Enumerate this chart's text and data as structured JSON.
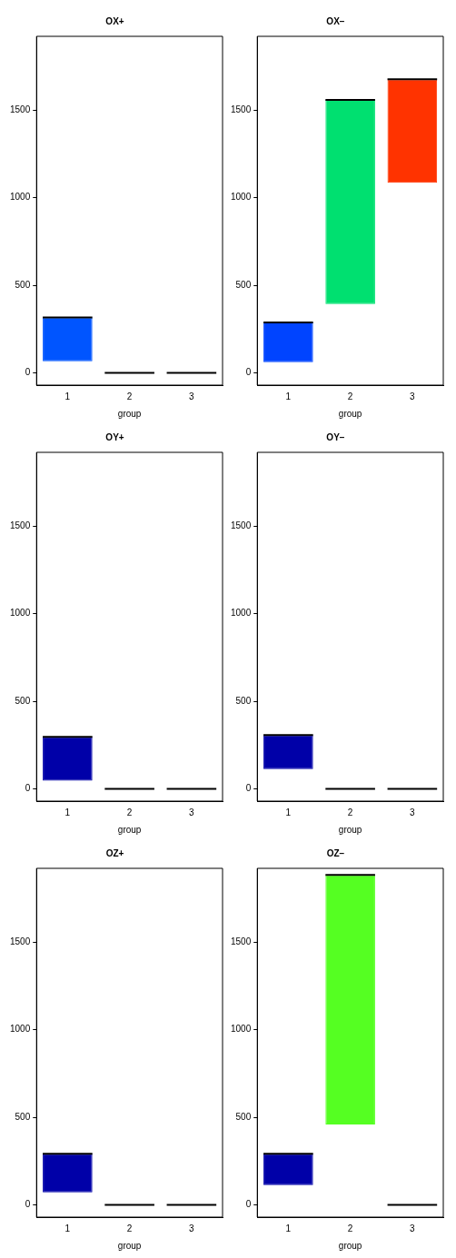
{
  "chart_data": [
    {
      "type": "box",
      "title": "OX+",
      "xlabel": "group",
      "categories": [
        "1",
        "2",
        "3"
      ],
      "ylim": [
        -70,
        1920
      ],
      "yticks": [
        0,
        500,
        1000,
        1500
      ],
      "grid": false,
      "colors": [
        "#0055ff",
        "#000000",
        "#000000"
      ],
      "boxes": [
        {
          "low": 66,
          "q1": 66,
          "median": 316,
          "q3": 316,
          "high": 316
        },
        {
          "low": 0,
          "q1": 0,
          "median": 0,
          "q3": 0,
          "high": 0
        },
        {
          "low": 0,
          "q1": 0,
          "median": 0,
          "q3": 0,
          "high": 0
        }
      ]
    },
    {
      "type": "box",
      "title": "OX−",
      "xlabel": "group",
      "categories": [
        "1",
        "2",
        "3"
      ],
      "ylim": [
        -70,
        1920
      ],
      "yticks": [
        0,
        500,
        1000,
        1500
      ],
      "grid": false,
      "colors": [
        "#0044ff",
        "#00e070",
        "#ff3300"
      ],
      "boxes": [
        {
          "low": 61,
          "q1": 61,
          "median": 288,
          "q3": 288,
          "high": 288
        },
        {
          "low": 392,
          "q1": 392,
          "median": 1557,
          "q3": 1557,
          "high": 1557
        },
        {
          "low": 1085,
          "q1": 1085,
          "median": 1675,
          "q3": 1675,
          "high": 1675
        }
      ]
    },
    {
      "type": "box",
      "title": "OY+",
      "xlabel": "group",
      "categories": [
        "1",
        "2",
        "3"
      ],
      "ylim": [
        -70,
        1920
      ],
      "yticks": [
        0,
        500,
        1000,
        1500
      ],
      "grid": false,
      "colors": [
        "#0000a8",
        "#000000",
        "#000000"
      ],
      "boxes": [
        {
          "low": 47,
          "q1": 47,
          "median": 297,
          "q3": 297,
          "high": 297
        },
        {
          "low": 0,
          "q1": 0,
          "median": 0,
          "q3": 0,
          "high": 0
        },
        {
          "low": 0,
          "q1": 0,
          "median": 0,
          "q3": 0,
          "high": 0
        }
      ]
    },
    {
      "type": "box",
      "title": "OY−",
      "xlabel": "group",
      "categories": [
        "1",
        "2",
        "3"
      ],
      "ylim": [
        -70,
        1920
      ],
      "yticks": [
        0,
        500,
        1000,
        1500
      ],
      "grid": false,
      "colors": [
        "#0000a8",
        "#000000",
        "#000000"
      ],
      "boxes": [
        {
          "low": 113,
          "q1": 113,
          "median": 307,
          "q3": 307,
          "high": 307
        },
        {
          "low": 0,
          "q1": 0,
          "median": 0,
          "q3": 0,
          "high": 0
        },
        {
          "low": 0,
          "q1": 0,
          "median": 0,
          "q3": 0,
          "high": 0
        }
      ]
    },
    {
      "type": "box",
      "title": "OZ+",
      "xlabel": "group",
      "categories": [
        "1",
        "2",
        "3"
      ],
      "ylim": [
        -70,
        1920
      ],
      "yticks": [
        0,
        500,
        1000,
        1500
      ],
      "grid": false,
      "colors": [
        "#0000a8",
        "#000000",
        "#000000"
      ],
      "boxes": [
        {
          "low": 71,
          "q1": 71,
          "median": 292,
          "q3": 292,
          "high": 292
        },
        {
          "low": 0,
          "q1": 0,
          "median": 0,
          "q3": 0,
          "high": 0
        },
        {
          "low": 0,
          "q1": 0,
          "median": 0,
          "q3": 0,
          "high": 0
        }
      ]
    },
    {
      "type": "box",
      "title": "OZ−",
      "xlabel": "group",
      "categories": [
        "1",
        "2",
        "3"
      ],
      "ylim": [
        -70,
        1920
      ],
      "yticks": [
        0,
        500,
        1000,
        1500
      ],
      "grid": false,
      "colors": [
        "#0000a8",
        "#55ff22",
        "#000000"
      ],
      "boxes": [
        {
          "low": 113,
          "q1": 113,
          "median": 292,
          "q3": 292,
          "high": 292
        },
        {
          "low": 458,
          "q1": 458,
          "median": 1882,
          "q3": 1882,
          "high": 1882
        },
        {
          "low": 0,
          "q1": 0,
          "median": 0,
          "q3": 0,
          "high": 0
        }
      ]
    }
  ]
}
